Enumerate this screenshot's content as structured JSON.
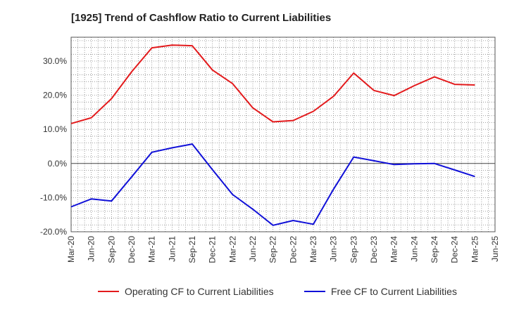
{
  "chart_data": {
    "type": "line",
    "title": "[1925]  Trend of Cashflow Ratio to Current Liabilities",
    "xlabel": "",
    "ylabel": "",
    "x_ticks": [
      "Mar-20",
      "Jun-20",
      "Sep-20",
      "Dec-20",
      "Mar-21",
      "Jun-21",
      "Sep-21",
      "Dec-21",
      "Mar-22",
      "Jun-22",
      "Sep-22",
      "Dec-22",
      "Mar-23",
      "Jun-23",
      "Sep-23",
      "Dec-23",
      "Mar-24",
      "Jun-24",
      "Sep-24",
      "Dec-24",
      "Mar-25",
      "Jun-25"
    ],
    "y_ticks": [
      "30.0%",
      "20.0%",
      "10.0%",
      "0.0%",
      "-10.0%",
      "-20.0%"
    ],
    "y_tick_values": [
      30,
      20,
      10,
      0,
      -10,
      -20
    ],
    "ylim": [
      -20,
      37
    ],
    "grid": true,
    "legend_position": "bottom",
    "categories": [
      "Mar-20",
      "Jun-20",
      "Sep-20",
      "Dec-20",
      "Mar-21",
      "Jun-21",
      "Sep-21",
      "Dec-21",
      "Mar-22",
      "Jun-22",
      "Sep-22",
      "Dec-22",
      "Mar-23",
      "Jun-23",
      "Sep-23",
      "Dec-23",
      "Mar-24",
      "Jun-24",
      "Sep-24",
      "Dec-24",
      "Mar-25"
    ],
    "series": [
      {
        "name": "Operating CF to Current Liabilities",
        "color": "#e31a1c",
        "values": [
          11.7,
          13.4,
          19.0,
          26.9,
          33.9,
          34.7,
          34.5,
          27.4,
          23.4,
          16.3,
          12.2,
          12.6,
          15.3,
          19.7,
          26.5,
          21.4,
          19.9,
          22.8,
          25.4,
          23.2,
          23.0
        ]
      },
      {
        "name": "Free CF to Current Liabilities",
        "color": "#1010d8",
        "values": [
          -12.7,
          -10.4,
          -11.0,
          -3.9,
          3.3,
          4.6,
          5.7,
          -1.8,
          -9.1,
          -13.4,
          -18.1,
          -16.7,
          -17.8,
          -7.5,
          1.9,
          0.8,
          -0.3,
          -0.1,
          0.0,
          -1.9,
          -3.8
        ]
      }
    ]
  }
}
